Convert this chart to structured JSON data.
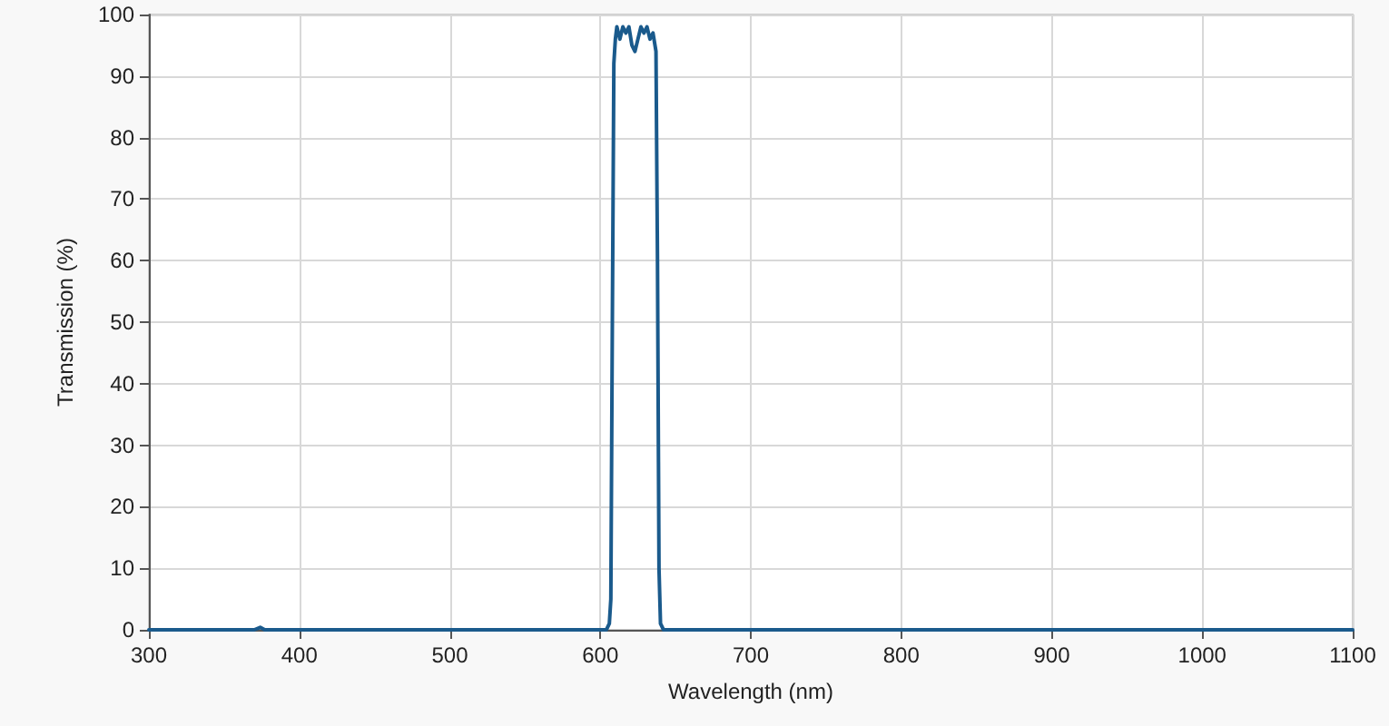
{
  "chart_data": {
    "type": "line",
    "xlabel": "Wavelength (nm)",
    "ylabel": "Transmission (%)",
    "xlim": [
      300,
      1100
    ],
    "xticks": [
      300,
      400,
      500,
      600,
      700,
      800,
      900,
      1000,
      1100
    ],
    "ylim": [
      0,
      100
    ],
    "yticks": [
      0,
      10,
      20,
      30,
      40,
      50,
      60,
      70,
      80,
      90,
      100
    ],
    "grid": true,
    "marker": "none",
    "line_style": "solid",
    "series": [
      {
        "color": "#1a5a8c",
        "x": [
          300,
          370,
          374,
          377,
          604,
          606,
          607,
          608,
          609,
          610,
          611,
          613,
          615,
          617,
          619,
          621,
          623,
          625,
          627,
          629,
          631,
          633,
          635,
          637,
          638,
          639,
          640,
          642,
          1100
        ],
        "values": [
          0,
          0,
          0.4,
          0,
          0,
          1,
          5,
          50,
          92,
          96,
          98,
          96,
          98,
          97,
          98,
          95,
          94,
          96,
          98,
          97,
          98,
          96,
          97,
          94,
          60,
          10,
          1,
          0,
          0
        ]
      }
    ]
  }
}
